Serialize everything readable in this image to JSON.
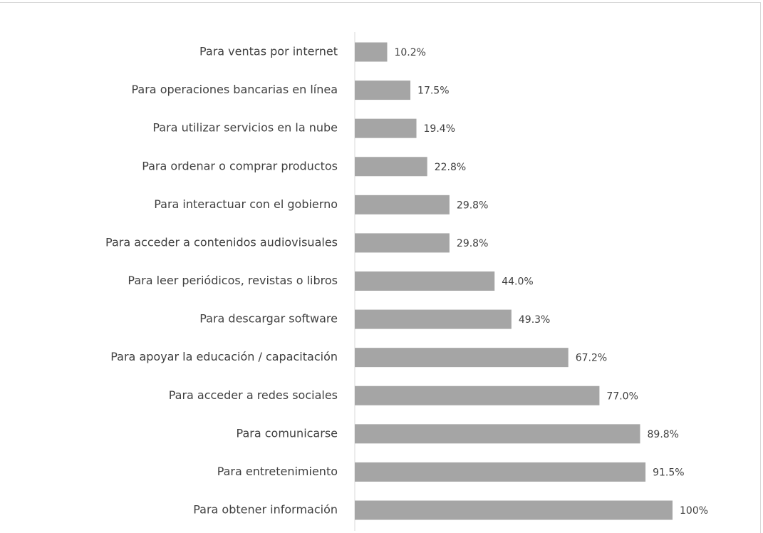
{
  "chart_data": {
    "type": "bar",
    "orientation": "horizontal",
    "categories": [
      "Para ventas por internet",
      "Para operaciones bancarias en línea",
      "Para utilizar servicios en la nube",
      "Para ordenar o comprar productos",
      "Para interactuar con el gobierno",
      "Para acceder a contenidos audiovisuales",
      "Para leer periódicos, revistas o libros",
      "Para descargar software",
      "Para apoyar la educación / capacitación",
      "Para acceder a redes sociales",
      "Para comunicarse",
      "Para entretenimiento",
      "Para obtener información"
    ],
    "values": [
      10.2,
      17.5,
      19.4,
      22.8,
      29.8,
      29.8,
      44.0,
      49.3,
      67.2,
      77.0,
      89.8,
      91.5,
      100
    ],
    "value_labels": [
      "10.2%",
      "17.5%",
      "19.4%",
      "22.8%",
      "29.8%",
      "29.8%",
      "44.0%",
      "49.3%",
      "67.2%",
      "77.0%",
      "89.8%",
      "91.5%",
      "100%"
    ],
    "color": "#a5a5a5",
    "xlim": [
      0,
      100
    ]
  }
}
